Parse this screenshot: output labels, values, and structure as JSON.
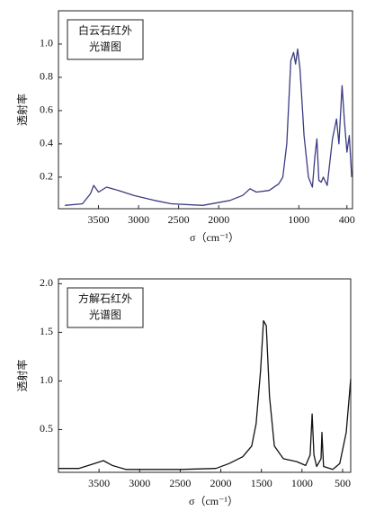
{
  "chart_data": [
    {
      "type": "line",
      "title_lines": [
        "白云石红外",
        "光谱图"
      ],
      "xlabel": "σ（cm⁻¹）",
      "ylabel": "透射率",
      "color": "#3b3b82",
      "xlim": [
        4000,
        330
      ],
      "ylim": [
        0.01,
        1.2
      ],
      "xticks": [
        3500,
        3000,
        2500,
        2000,
        1000,
        400
      ],
      "yticks": [
        0.2,
        0.4,
        0.6,
        0.8,
        {
          "value": 1.0,
          "label": "1.0"
        }
      ],
      "x": [
        3920,
        3700,
        3600,
        3560,
        3500,
        3400,
        3250,
        3060,
        2800,
        2590,
        2200,
        1860,
        1700,
        1610,
        1530,
        1370,
        1250,
        1200,
        1150,
        1120,
        1100,
        1065,
        1040,
        1015,
        985,
        960,
        935,
        880,
        830,
        800,
        775,
        750,
        720,
        695,
        645,
        580,
        530,
        500,
        460,
        430,
        400,
        370,
        340
      ],
      "y": [
        0.03,
        0.04,
        0.1,
        0.15,
        0.11,
        0.14,
        0.12,
        0.09,
        0.06,
        0.04,
        0.03,
        0.06,
        0.09,
        0.13,
        0.11,
        0.12,
        0.16,
        0.2,
        0.4,
        0.7,
        0.9,
        0.95,
        0.88,
        0.97,
        0.85,
        0.65,
        0.45,
        0.2,
        0.14,
        0.32,
        0.43,
        0.18,
        0.17,
        0.2,
        0.15,
        0.43,
        0.55,
        0.4,
        0.75,
        0.53,
        0.35,
        0.45,
        0.2
      ]
    },
    {
      "type": "line",
      "title_lines": [
        "方解石红外",
        "光谱图"
      ],
      "xlabel": "σ（cm⁻¹）",
      "ylabel": "透射率",
      "color": "#111111",
      "xlim": [
        4000,
        400
      ],
      "ylim": [
        0.06,
        2.05
      ],
      "xticks": [
        3500,
        3000,
        2500,
        2000,
        1500,
        1000,
        500
      ],
      "yticks": [
        0.5,
        {
          "value": 1.0,
          "label": "1.0"
        },
        1.5,
        {
          "value": 2.0,
          "label": "2.0"
        }
      ],
      "x": [
        4000,
        3750,
        3557,
        3446,
        3335,
        3170,
        2500,
        2060,
        1900,
        1730,
        1620,
        1565,
        1510,
        1475,
        1440,
        1400,
        1340,
        1230,
        1065,
        955,
        900,
        875,
        853,
        820,
        765,
        755,
        735,
        620,
        535,
        455,
        400
      ],
      "y": [
        0.1,
        0.1,
        0.15,
        0.18,
        0.13,
        0.09,
        0.09,
        0.1,
        0.15,
        0.22,
        0.33,
        0.56,
        1.11,
        1.62,
        1.57,
        0.84,
        0.33,
        0.2,
        0.17,
        0.13,
        0.24,
        0.66,
        0.24,
        0.12,
        0.2,
        0.47,
        0.12,
        0.09,
        0.15,
        0.47,
        1.02
      ]
    }
  ]
}
